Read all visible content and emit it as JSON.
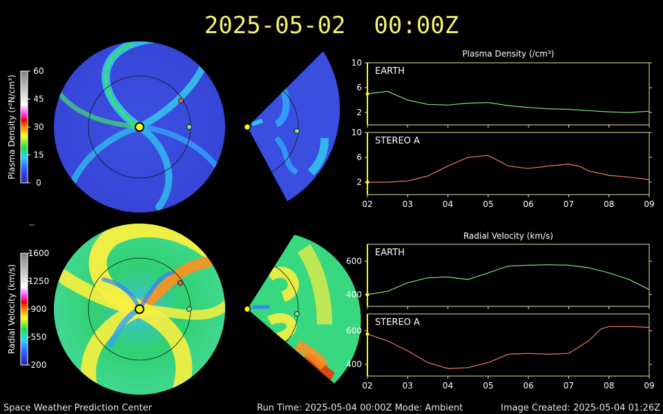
{
  "header": {
    "datetime": "2025-05-02  00:00Z"
  },
  "footer": {
    "center_name": "Space Weather Prediction Center",
    "run_info": "Run Time: 2025-05-04 00:00Z  Mode: Ambient",
    "image_created": "Image Created: 2025-05-04 01:26Z"
  },
  "colors": {
    "earth_series": "#7ee07a",
    "stereo_series": "#f07a6a",
    "frame": "#e6e6a0",
    "title": "#f4f46a",
    "sun": "#ffff00",
    "earth_marker": "#7ee07a",
    "stereo_marker": "#e06060"
  },
  "colorbars": {
    "density": {
      "label": "Plasma Density (r²N/cm³)",
      "ticks": [
        "60",
        "45",
        "30",
        "15",
        "0"
      ]
    },
    "velocity": {
      "label": "Radial Velocity (km/s)",
      "ticks": [
        "1600",
        "1250",
        "900",
        "550",
        "200"
      ]
    }
  },
  "chart_data": [
    {
      "type": "line",
      "title": "Plasma Density (/cm³)",
      "panel": "EARTH",
      "xlim": [
        2,
        9
      ],
      "ylim": [
        0,
        10
      ],
      "yticks": [
        2,
        6,
        10
      ],
      "x": [
        2.0,
        2.5,
        3.0,
        3.5,
        4.0,
        4.5,
        5.0,
        5.5,
        6.0,
        6.5,
        7.0,
        7.5,
        8.0,
        8.5,
        9.0
      ],
      "series": [
        {
          "values": [
            5.0,
            5.4,
            4.0,
            3.3,
            3.2,
            3.5,
            3.6,
            3.1,
            2.8,
            2.6,
            2.5,
            2.3,
            2.1,
            2.0,
            2.2
          ]
        }
      ]
    },
    {
      "type": "line",
      "panel": "STEREO A",
      "xlim": [
        2,
        9
      ],
      "ylim": [
        0,
        10
      ],
      "yticks": [
        2,
        6,
        10
      ],
      "xticks": [
        "02",
        "03",
        "04",
        "05",
        "06",
        "07",
        "08",
        "09"
      ],
      "x": [
        2.0,
        2.5,
        3.0,
        3.5,
        4.0,
        4.5,
        5.0,
        5.5,
        6.0,
        6.5,
        7.0,
        7.25,
        7.5,
        8.0,
        8.5,
        9.0
      ],
      "series": [
        {
          "values": [
            2.0,
            2.0,
            2.2,
            3.0,
            4.6,
            6.0,
            6.3,
            4.6,
            4.2,
            4.6,
            4.9,
            4.6,
            3.8,
            3.1,
            2.8,
            2.4
          ]
        }
      ]
    },
    {
      "type": "line",
      "title": "Radial Velocity (km/s)",
      "panel": "EARTH",
      "xlim": [
        2,
        9
      ],
      "ylim": [
        330,
        700
      ],
      "yticks": [
        400,
        600
      ],
      "x": [
        2.0,
        2.5,
        3.0,
        3.5,
        4.0,
        4.5,
        5.0,
        5.5,
        6.0,
        6.5,
        7.0,
        7.5,
        8.0,
        8.5,
        9.0
      ],
      "series": [
        {
          "values": [
            400,
            420,
            470,
            500,
            505,
            490,
            530,
            570,
            575,
            578,
            575,
            560,
            530,
            490,
            430
          ]
        }
      ]
    },
    {
      "type": "line",
      "panel": "STEREO A",
      "xlim": [
        2,
        9
      ],
      "ylim": [
        330,
        700
      ],
      "yticks": [
        400,
        600
      ],
      "xticks": [
        "02",
        "03",
        "04",
        "05",
        "06",
        "07",
        "08",
        "09"
      ],
      "x": [
        2.0,
        2.5,
        3.0,
        3.5,
        4.0,
        4.5,
        5.0,
        5.5,
        6.0,
        6.5,
        7.0,
        7.5,
        7.8,
        8.0,
        8.5,
        9.0
      ],
      "series": [
        {
          "values": [
            580,
            540,
            480,
            410,
            375,
            380,
            410,
            460,
            465,
            460,
            465,
            540,
            610,
            625,
            625,
            620
          ]
        }
      ]
    }
  ]
}
